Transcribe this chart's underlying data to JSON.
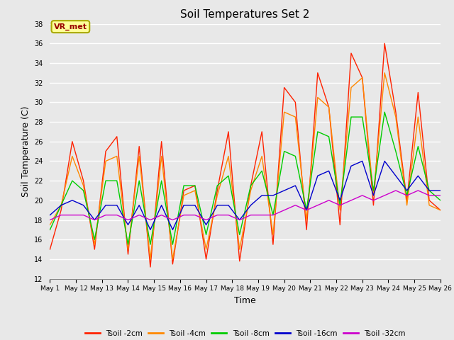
{
  "title": "Soil Temperatures Set 2",
  "xlabel": "Time",
  "ylabel": "Soil Temperature (C)",
  "ylim": [
    12,
    38
  ],
  "yticks": [
    12,
    14,
    16,
    18,
    20,
    22,
    24,
    26,
    28,
    30,
    32,
    34,
    36,
    38
  ],
  "annotation_text": "VR_met",
  "annotation_bg": "#FFFF99",
  "annotation_border": "#AAAA00",
  "annotation_text_color": "#990000",
  "bg_color": "#E8E8E8",
  "grid_color": "#FFFFFF",
  "series_colors": [
    "#FF2200",
    "#FF8800",
    "#00CC00",
    "#0000CC",
    "#CC00CC"
  ],
  "series_labels": [
    "Tsoil -2cm",
    "Tsoil -4cm",
    "Tsoil -8cm",
    "Tsoil -16cm",
    "Tsoil -32cm"
  ],
  "xtick_labels": [
    "May 1",
    "May 12",
    "May 13",
    "May 14",
    "May 15",
    "May 16",
    "May 17",
    "May 18",
    "May 19",
    "May 20",
    "May 21",
    "May 22",
    "May 23",
    "May 24",
    "May 25",
    "May 26"
  ],
  "tsoil_2cm": [
    15.0,
    19.0,
    26.0,
    22.0,
    15.0,
    25.0,
    26.5,
    14.5,
    25.5,
    13.2,
    26.0,
    13.5,
    21.0,
    21.5,
    14.0,
    21.0,
    27.0,
    13.8,
    21.5,
    27.0,
    15.5,
    31.5,
    30.0,
    17.0,
    33.0,
    29.5,
    17.5,
    35.0,
    32.5,
    19.5,
    36.0,
    29.0,
    20.0,
    31.0,
    20.0,
    19.0
  ],
  "tsoil_4cm": [
    17.5,
    19.5,
    24.5,
    21.5,
    15.5,
    24.0,
    24.5,
    15.0,
    24.5,
    14.0,
    24.5,
    14.0,
    20.5,
    21.0,
    15.0,
    20.5,
    24.5,
    15.0,
    21.0,
    24.5,
    16.5,
    29.0,
    28.5,
    18.0,
    30.5,
    29.5,
    19.0,
    31.5,
    32.5,
    20.5,
    33.0,
    28.5,
    19.5,
    28.5,
    19.5,
    19.0
  ],
  "tsoil_8cm": [
    17.0,
    19.5,
    22.0,
    21.0,
    16.0,
    22.0,
    22.0,
    15.5,
    22.0,
    15.5,
    22.0,
    15.5,
    21.5,
    21.5,
    16.5,
    21.5,
    22.5,
    16.5,
    21.5,
    23.0,
    18.5,
    25.0,
    24.5,
    19.0,
    27.0,
    26.5,
    19.5,
    28.5,
    28.5,
    21.0,
    29.0,
    25.0,
    20.5,
    25.5,
    21.0,
    20.0
  ],
  "tsoil_16cm": [
    18.5,
    19.5,
    20.0,
    19.5,
    18.0,
    19.5,
    19.5,
    17.5,
    19.5,
    17.0,
    19.5,
    17.0,
    19.5,
    19.5,
    17.5,
    19.5,
    19.5,
    18.0,
    19.5,
    20.5,
    20.5,
    21.0,
    21.5,
    19.0,
    22.5,
    23.0,
    20.0,
    23.5,
    24.0,
    20.5,
    24.0,
    22.5,
    21.0,
    22.5,
    21.0,
    21.0
  ],
  "tsoil_32cm": [
    18.0,
    18.5,
    18.5,
    18.5,
    18.0,
    18.5,
    18.5,
    18.0,
    18.5,
    18.0,
    18.5,
    18.0,
    18.5,
    18.5,
    18.0,
    18.5,
    18.5,
    18.0,
    18.5,
    18.5,
    18.5,
    19.0,
    19.5,
    19.0,
    19.5,
    20.0,
    19.5,
    20.0,
    20.5,
    20.0,
    20.5,
    21.0,
    20.5,
    21.0,
    20.5,
    20.5
  ]
}
